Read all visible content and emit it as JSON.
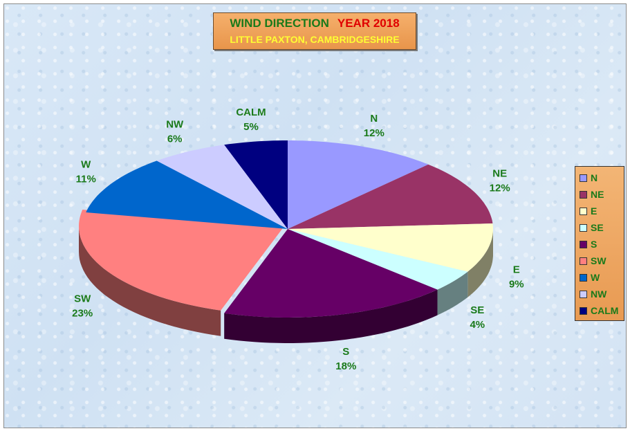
{
  "title": {
    "main": "WIND DIRECTION",
    "year": "YEAR 2018",
    "subtitle": "LITTLE PAXTON, CAMBRIDGESHIRE"
  },
  "chart_data": {
    "type": "pie",
    "categories": [
      "N",
      "NE",
      "E",
      "SE",
      "S",
      "SW",
      "W",
      "NW",
      "CALM"
    ],
    "values": [
      12,
      12,
      9,
      4,
      18,
      23,
      11,
      6,
      5
    ],
    "value_labels": [
      "12%",
      "12%",
      "9%",
      "4%",
      "18%",
      "23%",
      "11%",
      "6%",
      "5%"
    ],
    "colors": [
      "#9999ff",
      "#993366",
      "#ffffcc",
      "#ccffff",
      "#660066",
      "#ff8080",
      "#0066cc",
      "#ccccff",
      "#000080"
    ],
    "legend_position": "right",
    "style": "3d-exploded-oblique"
  }
}
